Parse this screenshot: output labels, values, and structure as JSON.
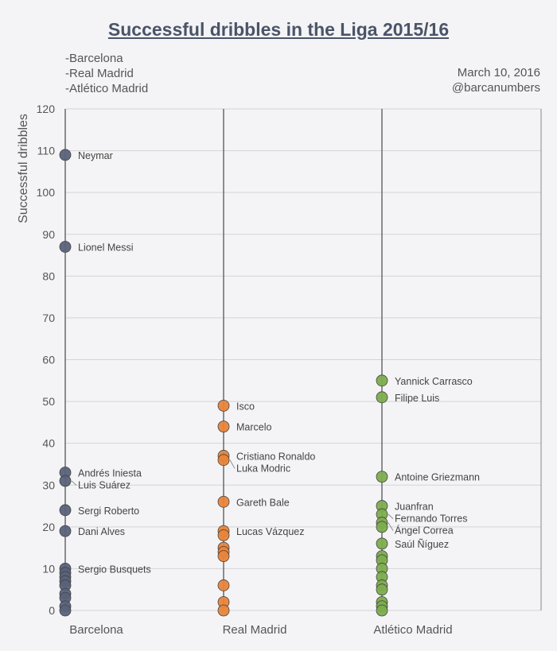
{
  "header": {
    "title": "Successful dribbles in the Liga 2015/16",
    "teams_list": [
      "-Barcelona",
      "-Real Madrid",
      "-Atlético Madrid"
    ],
    "date": "March 10, 2016",
    "handle": "@barcanumbers"
  },
  "colors": {
    "Barcelona": "#58627a",
    "Real Madrid": "#e98438",
    "Atlético Madrid": "#7cad4c",
    "grid": "#d4d4d8",
    "stem": "#555555",
    "text": "#555555",
    "title": "#4a5468"
  },
  "chart_data": {
    "type": "scatter",
    "title": "Successful dribbles in the Liga 2015/16",
    "ylabel": "Successful dribbles",
    "xlabel": "",
    "ylim": [
      0,
      120
    ],
    "yticks": [
      0,
      10,
      20,
      30,
      40,
      50,
      60,
      70,
      80,
      90,
      100,
      110,
      120
    ],
    "categories": [
      "Barcelona",
      "Real Madrid",
      "Atlético Madrid"
    ],
    "grid": true,
    "series": [
      {
        "name": "Barcelona",
        "values": [
          109,
          87,
          33,
          31,
          24,
          19,
          10,
          9,
          8,
          7,
          6,
          4,
          3,
          1,
          0
        ],
        "labels": [
          {
            "name": "Neymar",
            "value": 109
          },
          {
            "name": "Lionel Messi",
            "value": 87
          },
          {
            "name": "Andrés Iniesta",
            "value": 33
          },
          {
            "name": "Luis Suárez",
            "value": 31
          },
          {
            "name": "Sergi Roberto",
            "value": 24
          },
          {
            "name": "Dani Alves",
            "value": 19
          },
          {
            "name": "Sergio Busquets",
            "value": 10
          }
        ]
      },
      {
        "name": "Real Madrid",
        "values": [
          49,
          44,
          37,
          36,
          26,
          19,
          18,
          15,
          14,
          13,
          6,
          2,
          0
        ],
        "labels": [
          {
            "name": "Isco",
            "value": 49
          },
          {
            "name": "Marcelo",
            "value": 44
          },
          {
            "name": "Cristiano Ronaldo",
            "value": 37
          },
          {
            "name": "Luka Modric",
            "value": 36
          },
          {
            "name": "Gareth Bale",
            "value": 26
          },
          {
            "name": "Lucas Vázquez",
            "value": 19
          }
        ]
      },
      {
        "name": "Atlético Madrid",
        "values": [
          55,
          51,
          32,
          25,
          23,
          21,
          20,
          16,
          13,
          12,
          10,
          8,
          6,
          5,
          2,
          1,
          0
        ],
        "labels": [
          {
            "name": "Yannick Carrasco",
            "value": 55
          },
          {
            "name": "Filipe Luis",
            "value": 51
          },
          {
            "name": "Antoine Griezmann",
            "value": 32
          },
          {
            "name": "Juanfran",
            "value": 25
          },
          {
            "name": "Fernando Torres",
            "value": 23
          },
          {
            "name": "Ángel Correa",
            "value": 21
          },
          {
            "name": "Saúl Ñíguez",
            "value": 16
          }
        ]
      }
    ]
  }
}
